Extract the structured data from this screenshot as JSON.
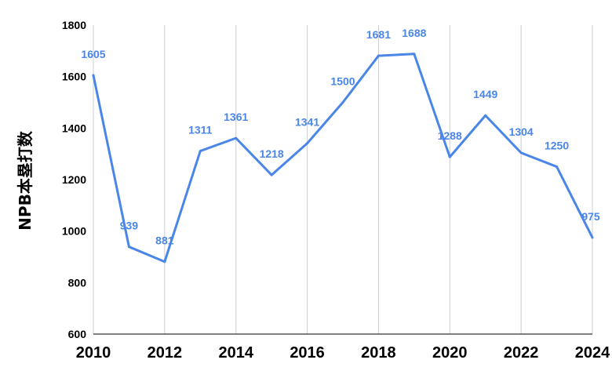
{
  "chart_data": {
    "type": "line",
    "title": "",
    "xlabel": "",
    "ylabel": "NPB本塁打数",
    "x": [
      2010,
      2011,
      2012,
      2013,
      2014,
      2015,
      2016,
      2017,
      2018,
      2019,
      2020,
      2021,
      2022,
      2023,
      2024
    ],
    "series": [
      {
        "values": [
          1605,
          939,
          881,
          1311,
          1361,
          1218,
          1341,
          1500,
          1681,
          1688,
          1288,
          1449,
          1304,
          1250,
          975
        ]
      }
    ],
    "x_tick_labels": [
      "2010",
      "2012",
      "2014",
      "2016",
      "2018",
      "2020",
      "2022",
      "2024"
    ],
    "y_tick_labels": [
      "600",
      "800",
      "1000",
      "1200",
      "1400",
      "1600",
      "1800"
    ],
    "ylim": [
      600,
      1800
    ],
    "xlim": [
      2010,
      2024
    ],
    "grid": "vertical",
    "legend": "none",
    "colors": {
      "line": "#4a86e8",
      "label": "#4a86e8",
      "grid": "#cccccc",
      "axis": "#333333"
    }
  }
}
